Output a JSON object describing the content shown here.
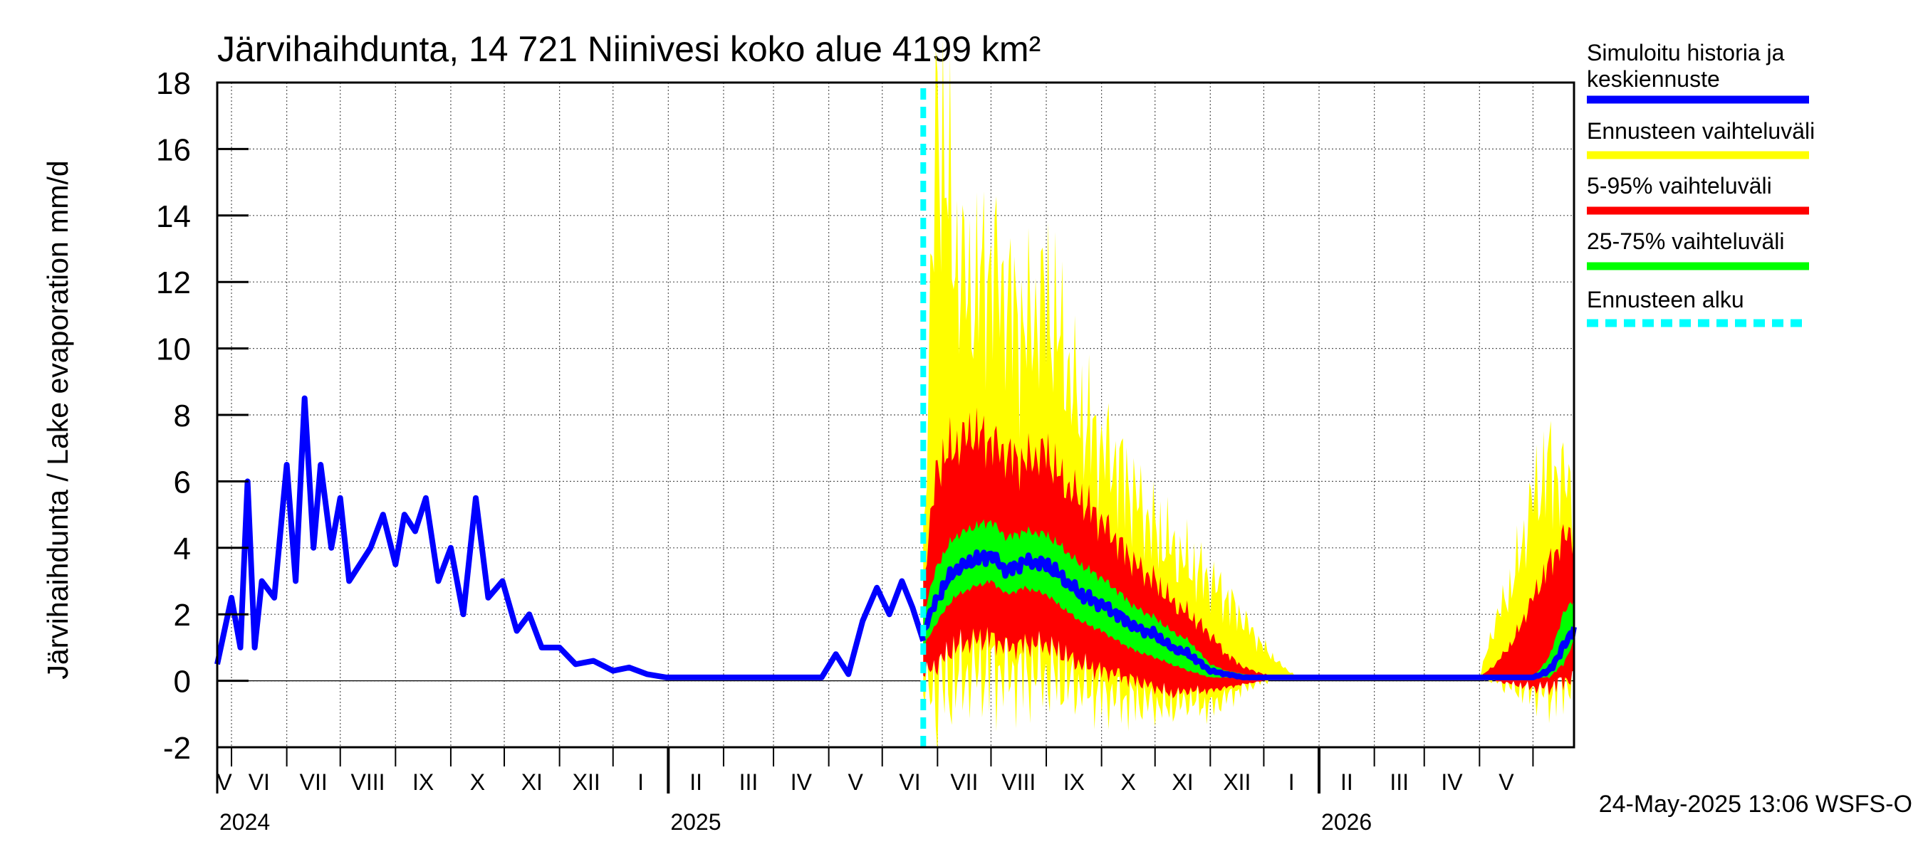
{
  "chart_data": {
    "type": "area",
    "title": "Järvihaihdunta, 14 721 Niinivesi koko alue 4199 km²",
    "ylabel": "Järvihaihdunta / Lake evaporation   mm/d",
    "ylim": [
      -2,
      18
    ],
    "y_ticks": [
      "-2",
      "0",
      "2",
      "4",
      "6",
      "8",
      "10",
      "12",
      "14",
      "16",
      "18"
    ],
    "x_range": [
      "2024-04-23",
      "2026-05-24"
    ],
    "months": [
      "V",
      "VI",
      "VII",
      "VIII",
      "IX",
      "X",
      "XI",
      "XII",
      "I",
      "II",
      "III",
      "IV",
      "V",
      "VI",
      "VII",
      "VIII",
      "IX",
      "X",
      "XI",
      "XII",
      "I",
      "II",
      "III",
      "IV",
      "V"
    ],
    "years": [
      "2024",
      "2025",
      "2026"
    ],
    "forecast_start": "2025-05-24",
    "legend": [
      {
        "label": "Simuloitu historia ja keskiennuste",
        "color": "#0000ff"
      },
      {
        "label": "Ennusteen vaihteluväli",
        "color": "#ffff00"
      },
      {
        "label": "5-95% vaihteluväli",
        "color": "#ff0000"
      },
      {
        "label": "25-75% vaihteluväli",
        "color": "#00ff00"
      },
      {
        "label": "Ennusteen alku",
        "color": "#00ffff"
      }
    ],
    "legend_lines": [
      [
        "Simuloitu historia ja",
        "keskiennuste"
      ],
      [
        "Ennusteen vaihteluväli"
      ],
      [
        "5-95% vaihteluväli"
      ],
      [
        "25-75% vaihteluväli"
      ],
      [
        "Ennusteen alku"
      ]
    ],
    "history": {
      "x": [
        "2024-04-23",
        "2024-05-01",
        "2024-05-06",
        "2024-05-10",
        "2024-05-14",
        "2024-05-18",
        "2024-05-25",
        "2024-06-01",
        "2024-06-06",
        "2024-06-11",
        "2024-06-16",
        "2024-06-20",
        "2024-06-26",
        "2024-07-01",
        "2024-07-06",
        "2024-07-12",
        "2024-07-18",
        "2024-07-25",
        "2024-08-01",
        "2024-08-06",
        "2024-08-12",
        "2024-08-18",
        "2024-08-25",
        "2024-09-01",
        "2024-09-08",
        "2024-09-15",
        "2024-09-22",
        "2024-09-30",
        "2024-10-08",
        "2024-10-15",
        "2024-10-22",
        "2024-11-01",
        "2024-11-10",
        "2024-11-20",
        "2024-12-01",
        "2024-12-10",
        "2024-12-20",
        "2024-12-31",
        "2025-01-20",
        "2025-02-15",
        "2025-03-10",
        "2025-03-28",
        "2025-04-05",
        "2025-04-12",
        "2025-04-20",
        "2025-04-28",
        "2025-05-05",
        "2025-05-12",
        "2025-05-18",
        "2025-05-24"
      ],
      "y": [
        0.5,
        2.5,
        1.0,
        6.0,
        1.0,
        3.0,
        2.5,
        6.5,
        3.0,
        8.5,
        4.0,
        6.5,
        4.0,
        5.5,
        3.0,
        3.5,
        4.0,
        5.0,
        3.5,
        5.0,
        4.5,
        5.5,
        3.0,
        4.0,
        2.0,
        5.5,
        2.5,
        3.0,
        1.5,
        2.0,
        1.0,
        1.0,
        0.5,
        0.6,
        0.3,
        0.4,
        0.2,
        0.1,
        0.1,
        0.1,
        0.1,
        0.1,
        0.8,
        0.2,
        1.8,
        2.8,
        2.0,
        3.0,
        2.2,
        1.2
      ]
    },
    "forecast": {
      "x": [
        "2025-05-24",
        "2025-06-01",
        "2025-06-10",
        "2025-06-20",
        "2025-07-01",
        "2025-07-10",
        "2025-07-20",
        "2025-08-01",
        "2025-08-10",
        "2025-08-20",
        "2025-09-01",
        "2025-09-10",
        "2025-09-20",
        "2025-10-01",
        "2025-10-10",
        "2025-10-20",
        "2025-11-01",
        "2025-11-10",
        "2025-11-20",
        "2025-12-01",
        "2025-12-10",
        "2025-12-20",
        "2026-01-01",
        "2026-02-01",
        "2026-03-01",
        "2026-03-25",
        "2026-04-01",
        "2026-04-10",
        "2026-04-20",
        "2026-05-01",
        "2026-05-10",
        "2026-05-18",
        "2026-05-24"
      ],
      "median": [
        1.5,
        2.5,
        3.3,
        3.6,
        3.8,
        3.3,
        3.6,
        3.5,
        3.1,
        2.6,
        2.3,
        2.0,
        1.6,
        1.4,
        1.0,
        0.8,
        0.3,
        0.2,
        0.1,
        0.1,
        0.1,
        0.1,
        0.1,
        0.1,
        0.1,
        0.1,
        0.1,
        0.1,
        0.1,
        0.1,
        0.3,
        1.0,
        1.6
      ],
      "p25": [
        1.0,
        1.8,
        2.5,
        2.8,
        3.0,
        2.6,
        2.8,
        2.6,
        2.2,
        1.8,
        1.5,
        1.2,
        0.9,
        0.7,
        0.5,
        0.3,
        0.1,
        0.1,
        0.1,
        0.1,
        0.1,
        0.1,
        0.1,
        0.1,
        0.1,
        0.1,
        0.1,
        0.1,
        0.1,
        0.1,
        0.1,
        0.5,
        1.2
      ],
      "p75": [
        2.0,
        3.5,
        4.3,
        4.6,
        4.8,
        4.3,
        4.5,
        4.4,
        4.0,
        3.5,
        3.1,
        2.7,
        2.2,
        1.9,
        1.5,
        1.2,
        0.5,
        0.3,
        0.2,
        0.1,
        0.1,
        0.1,
        0.1,
        0.1,
        0.1,
        0.1,
        0.1,
        0.1,
        0.1,
        0.1,
        0.7,
        2.0,
        2.5
      ],
      "p5": [
        0.2,
        0.5,
        1.0,
        1.2,
        1.3,
        1.0,
        1.1,
        1.1,
        0.8,
        0.5,
        0.3,
        0.2,
        0.0,
        -0.2,
        -0.4,
        -0.3,
        -0.3,
        -0.2,
        -0.1,
        0.0,
        0.1,
        0.1,
        0.1,
        0.1,
        0.1,
        0.1,
        0.1,
        0.0,
        -0.1,
        -0.2,
        -0.2,
        0.0,
        0.1
      ],
      "p95": [
        3.0,
        6.5,
        7.0,
        7.5,
        7.2,
        6.8,
        6.6,
        6.9,
        6.0,
        5.5,
        4.8,
        4.2,
        3.5,
        3.0,
        2.4,
        2.0,
        1.4,
        0.8,
        0.4,
        0.2,
        0.1,
        0.1,
        0.1,
        0.1,
        0.1,
        0.1,
        0.1,
        0.5,
        1.2,
        2.5,
        3.5,
        4.3,
        4.5
      ],
      "min": [
        -0.3,
        -0.3,
        0.0,
        0.2,
        0.3,
        0.2,
        0.2,
        0.2,
        0.0,
        -0.2,
        -0.4,
        -0.5,
        -0.6,
        -0.7,
        -0.8,
        -0.6,
        -0.8,
        -0.5,
        -0.2,
        0.0,
        0.1,
        0.1,
        0.1,
        0.1,
        0.1,
        0.1,
        0.1,
        0.0,
        -0.2,
        -0.3,
        -0.4,
        -0.2,
        0.0
      ],
      "max": [
        4.0,
        17.5,
        13.0,
        11.5,
        12.5,
        11.5,
        10.5,
        11.5,
        10.0,
        8.0,
        7.0,
        6.5,
        5.5,
        4.5,
        4.0,
        3.5,
        3.0,
        2.5,
        1.8,
        1.0,
        0.5,
        0.1,
        0.1,
        0.1,
        0.1,
        0.1,
        0.1,
        1.8,
        3.0,
        5.5,
        6.5,
        6.0,
        5.8
      ]
    },
    "footer": "24-May-2025 13:06 WSFS-O"
  }
}
